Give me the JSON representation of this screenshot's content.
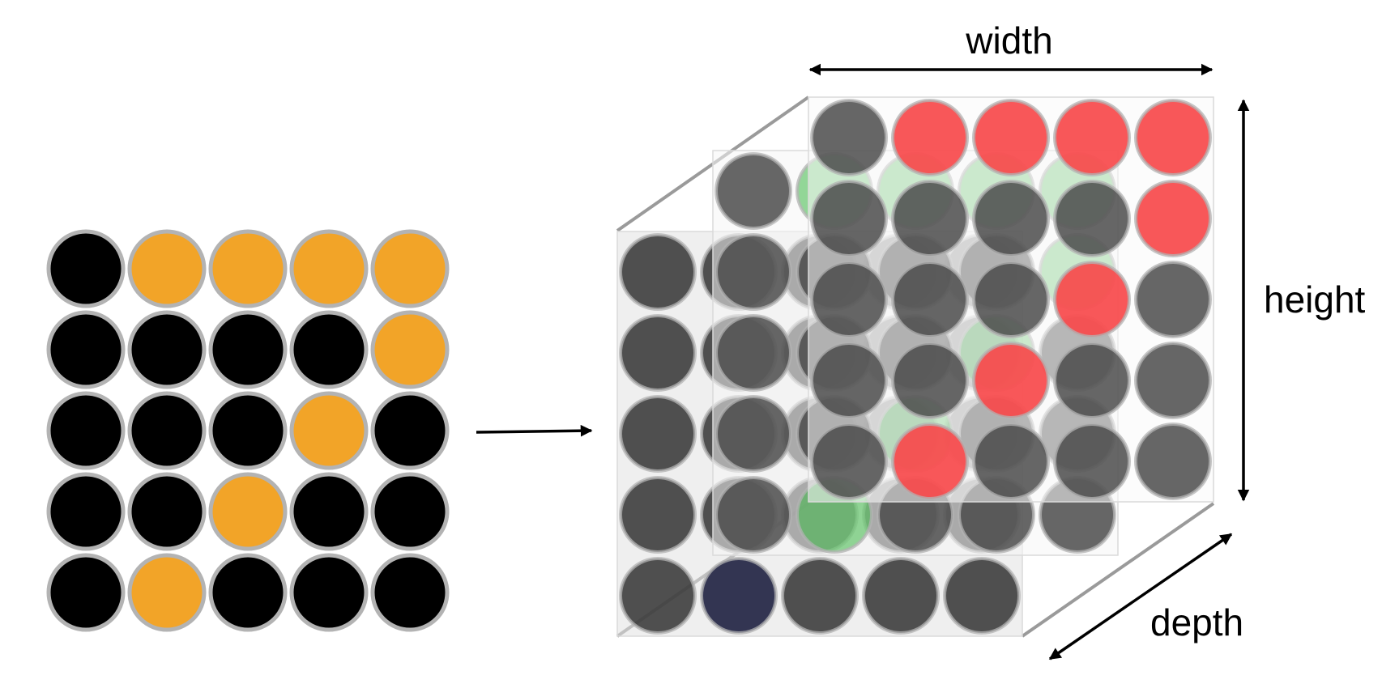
{
  "labels": {
    "width": "width",
    "height": "height",
    "depth": "depth"
  },
  "colors": {
    "empty_cell": "#000000",
    "filled_cell": "#F2A428",
    "cell_outline": "#B3B3B3",
    "back_layer_cell": "#333333",
    "back_layer_accent": "#333552",
    "middle_layer_cell": "#4B4B4B",
    "middle_layer_accent": "#3DB845",
    "front_layer_cell": "#4B4B4B",
    "front_layer_accent": "#F7494B",
    "arrow": "#000000",
    "frame_line": "#9A9A9A"
  },
  "input_grid": [
    [
      0,
      1,
      1,
      1,
      1
    ],
    [
      0,
      0,
      0,
      0,
      1
    ],
    [
      0,
      0,
      0,
      1,
      0
    ],
    [
      0,
      0,
      1,
      0,
      0
    ],
    [
      0,
      1,
      0,
      0,
      0
    ]
  ],
  "output_layers": [
    {
      "name": "back",
      "grid": [
        [
          0,
          0,
          0,
          0,
          0
        ],
        [
          0,
          0,
          0,
          0,
          0
        ],
        [
          0,
          0,
          0,
          0,
          0
        ],
        [
          0,
          0,
          0,
          0,
          0
        ],
        [
          0,
          1,
          0,
          0,
          0
        ]
      ]
    },
    {
      "name": "middle",
      "grid": [
        [
          0,
          1,
          1,
          1,
          1
        ],
        [
          0,
          0,
          0,
          0,
          1
        ],
        [
          0,
          0,
          0,
          1,
          0
        ],
        [
          0,
          0,
          1,
          0,
          0
        ],
        [
          0,
          1,
          0,
          0,
          0
        ]
      ]
    },
    {
      "name": "front",
      "grid": [
        [
          0,
          1,
          1,
          1,
          1
        ],
        [
          0,
          0,
          0,
          0,
          1
        ],
        [
          0,
          0,
          0,
          1,
          0
        ],
        [
          0,
          0,
          1,
          0,
          0
        ],
        [
          0,
          1,
          0,
          0,
          0
        ]
      ]
    }
  ]
}
